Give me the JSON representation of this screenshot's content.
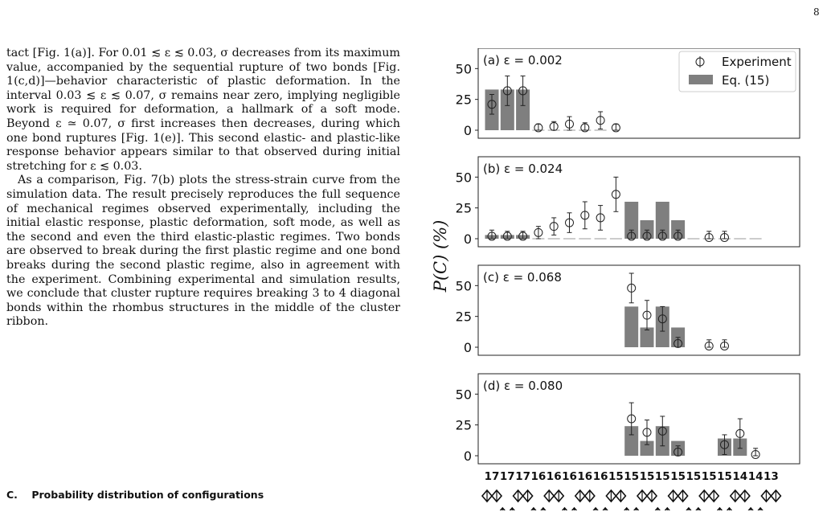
{
  "page_number": "8",
  "body_paragraphs": [
    "tact [Fig. 1(a)]. For 0.01 ≲ ε ≲ 0.03, σ decreases from its maximum value, accompanied by the sequential rupture of two bonds [Fig. 1(c,d)]—behavior characteristic of plastic deformation. In the interval 0.03 ≲ ε ≲ 0.07, σ remains near zero, implying negligible work is required for deformation, a hallmark of a soft mode. Beyond ε ≃ 0.07, σ first increases then decreases, during which one bond ruptures [Fig. 1(e)]. This second elastic- and plastic-like response behavior appears similar to that observed during initial stretching for ε ≲ 0.03.",
    "As a comparison, Fig. 7(b) plots the stress-strain curve from the simulation data. The result precisely reproduces the full sequence of mechanical regimes observed experimentally, including the initial elastic response, plastic deformation, soft mode, as well as the second and even the third elastic-plastic regimes. Two bonds are observed to break during the first plastic regime and one bond breaks during the second plastic regime, also in agreement with the experiment. Combining experimental and simulation results, we conclude that cluster rupture requires breaking 3 to 4 diagonal bonds within the rhombus structures in the middle of the cluster ribbon."
  ],
  "section_heading": {
    "number": "C.",
    "title": "Probability distribution of configurations"
  },
  "chart_data": {
    "type": "bar",
    "ylabel": "P(C) (%)",
    "y_ticks": [
      0,
      25,
      50
    ],
    "ylim": [
      0,
      60
    ],
    "categories": [
      "17",
      "17",
      "17",
      "16",
      "16",
      "16",
      "16",
      "16",
      "15",
      "15",
      "15",
      "15",
      "15",
      "15",
      "15",
      "15",
      "14",
      "14",
      "13"
    ],
    "legend": {
      "placement": "top-right",
      "entries": [
        "Experiment",
        "Eq. (15)"
      ]
    },
    "colors": {
      "bar": "#7f7f7f",
      "marker": "#222222",
      "frame": "#222222",
      "dash": "#999999"
    },
    "panels": [
      {
        "label": "(a) ε = 0.002",
        "bars": [
          33,
          33,
          33,
          0,
          0,
          0,
          0,
          0,
          null,
          null,
          null,
          null,
          null,
          null,
          null,
          null,
          null,
          null,
          null
        ],
        "experiment": [
          {
            "x": 0,
            "y": 21,
            "err": 8
          },
          {
            "x": 1,
            "y": 32,
            "err": 12
          },
          {
            "x": 2,
            "y": 32,
            "err": 12
          },
          {
            "x": 3,
            "y": 2,
            "err": 3
          },
          {
            "x": 4,
            "y": 3,
            "err": 4
          },
          {
            "x": 5,
            "y": 5,
            "err": 6
          },
          {
            "x": 6,
            "y": 2,
            "err": 4
          },
          {
            "x": 7,
            "y": 8,
            "err": 7
          },
          {
            "x": 8,
            "y": 2,
            "err": 3
          }
        ]
      },
      {
        "label": "(b) ε = 0.024",
        "bars": [
          3,
          3,
          3,
          0,
          0,
          0,
          0,
          0,
          0,
          30,
          15,
          30,
          15,
          0,
          0,
          0,
          0,
          0,
          null
        ],
        "experiment": [
          {
            "x": 0,
            "y": 2,
            "err": 5
          },
          {
            "x": 1,
            "y": 2,
            "err": 4
          },
          {
            "x": 2,
            "y": 2,
            "err": 4
          },
          {
            "x": 3,
            "y": 5,
            "err": 5
          },
          {
            "x": 4,
            "y": 10,
            "err": 7
          },
          {
            "x": 5,
            "y": 13,
            "err": 8
          },
          {
            "x": 6,
            "y": 19,
            "err": 11
          },
          {
            "x": 7,
            "y": 17,
            "err": 10
          },
          {
            "x": 8,
            "y": 36,
            "err": 14
          },
          {
            "x": 9,
            "y": 2,
            "err": 5
          },
          {
            "x": 10,
            "y": 2,
            "err": 5
          },
          {
            "x": 11,
            "y": 2,
            "err": 5
          },
          {
            "x": 12,
            "y": 2,
            "err": 5
          },
          {
            "x": 14,
            "y": 1,
            "err": 5
          },
          {
            "x": 15,
            "y": 1,
            "err": 5
          }
        ]
      },
      {
        "label": "(c) ε = 0.068",
        "bars": [
          null,
          null,
          null,
          null,
          null,
          null,
          null,
          null,
          null,
          33,
          16,
          33,
          16,
          null,
          null,
          null,
          null,
          null,
          null
        ],
        "experiment": [
          {
            "x": 9,
            "y": 48,
            "err": 12
          },
          {
            "x": 10,
            "y": 26,
            "err": 12
          },
          {
            "x": 11,
            "y": 23,
            "err": 10
          },
          {
            "x": 12,
            "y": 3,
            "err": 5
          },
          {
            "x": 14,
            "y": 1,
            "err": 5
          },
          {
            "x": 15,
            "y": 1,
            "err": 5
          }
        ]
      },
      {
        "label": "(d) ε = 0.080",
        "bars": [
          null,
          null,
          null,
          null,
          null,
          null,
          null,
          null,
          null,
          24,
          12,
          24,
          12,
          null,
          null,
          14,
          14,
          null,
          null
        ],
        "experiment": [
          {
            "x": 9,
            "y": 30,
            "err": 13
          },
          {
            "x": 10,
            "y": 19,
            "err": 10
          },
          {
            "x": 11,
            "y": 20,
            "err": 12
          },
          {
            "x": 12,
            "y": 3,
            "err": 5
          },
          {
            "x": 15,
            "y": 9,
            "err": 8
          },
          {
            "x": 16,
            "y": 18,
            "err": 12
          },
          {
            "x": 17,
            "y": 1,
            "err": 5
          }
        ]
      }
    ]
  }
}
